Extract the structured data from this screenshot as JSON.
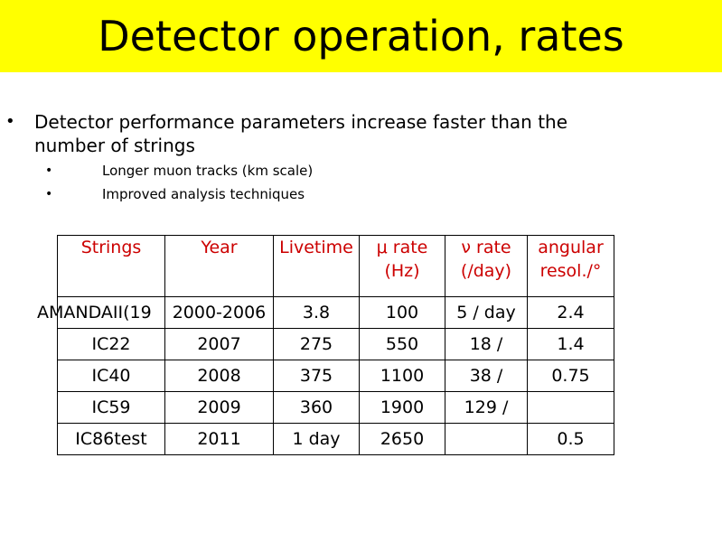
{
  "slide": {
    "title": "Detector operation, rates",
    "bullet_main": "Detector performance parameters increase faster than the number of strings",
    "sub_bullets": [
      "Longer muon tracks (km scale)",
      "Improved analysis techniques"
    ]
  },
  "table": {
    "headers": [
      {
        "line1": "Strings",
        "line2": ""
      },
      {
        "line1": "Year",
        "line2": ""
      },
      {
        "line1": "Livetime",
        "line2": ""
      },
      {
        "line1": "μ rate",
        "line2": "(Hz)"
      },
      {
        "line1": "ν rate",
        "line2": "(/day)"
      },
      {
        "line1": "angular",
        "line2": "resol./°"
      }
    ],
    "rows": [
      [
        "AMANDAII(19",
        "2000-2006",
        "3.8",
        "100",
        "5 / day",
        "2.4"
      ],
      [
        "IC22",
        "2007",
        "275",
        "550",
        "18 /",
        "1.4"
      ],
      [
        "IC40",
        "2008",
        "375",
        "1100",
        "38 /",
        "0.75"
      ],
      [
        "IC59",
        "2009",
        "360",
        "1900",
        "129 /",
        ""
      ],
      [
        "IC86test",
        "2011",
        "1 day",
        "2650",
        "",
        "0.5"
      ]
    ]
  },
  "colors": {
    "title_bar": "#ffff00",
    "header_text": "#cc0000"
  }
}
